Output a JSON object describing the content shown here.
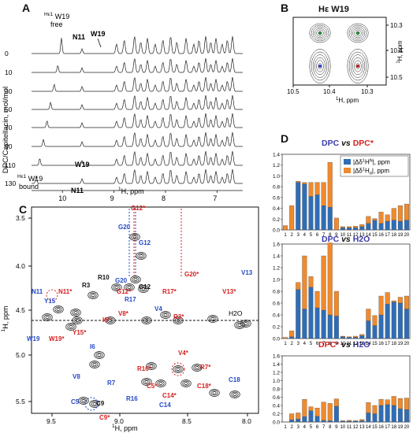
{
  "panels": {
    "A": {
      "label": "A",
      "ylabel": "DPC/Capitellacin, mol/mol",
      "xlabel": "1H, ppm",
      "xlabel_parts": {
        "sup": "1",
        "main": "H, ppm"
      },
      "ratios": [
        "0",
        "10",
        "30",
        "50",
        "70",
        "90",
        "110",
        "130"
      ],
      "x_ticks": [
        "10",
        "9",
        "8",
        "7"
      ],
      "ann_free": {
        "sup": "Hε1",
        "main": " W19",
        "line2": "free"
      },
      "ann_bound": {
        "sup": "Hε1",
        "main": " W19",
        "line2": "bound"
      },
      "ann_n11_top": "N11",
      "ann_w19_top": "W19",
      "ann_w19_bottom": "W19",
      "ann_n11_bottom": "N11"
    },
    "B": {
      "label": "B",
      "title": "Hε W19",
      "x_ticks": [
        "10.5",
        "10.4",
        "10.3"
      ],
      "y_ticks": [
        "10.3",
        "10.4",
        "10.5"
      ],
      "xlabel": "1H, ppm",
      "ylabel": "1H, ppm"
    },
    "C": {
      "label": "C",
      "x_ticks": [
        "9.5",
        "9.0",
        "8.5",
        "8.0"
      ],
      "y_ticks": [
        "3.5",
        "4.0",
        "4.5",
        "5.0",
        "5.5"
      ],
      "xlabel": "1H, ppm",
      "ylabel": "1H, ppm",
      "h2o": "H2O",
      "peaks_blue": [
        "G20",
        "G12",
        "G20",
        "R17",
        "V4",
        "V13",
        "N11",
        "Y15",
        "W19",
        "I6",
        "V8",
        "R7",
        "R16",
        "C14",
        "C18",
        "C5"
      ],
      "peaks_red": [
        "G12*",
        "G20*",
        "G12*",
        "R17*",
        "R3*",
        "V13*",
        "N11*",
        "V8*",
        "I6*",
        "Y15*",
        "W19*",
        "V4*",
        "R7*",
        "R16*",
        "C5*",
        "C14*",
        "C18*",
        "C9*"
      ],
      "peaks_black": [
        "G12",
        "R10",
        "R3",
        "C9"
      ]
    },
    "D": {
      "label": "D",
      "legend": {
        "hn": {
          "pre": "|Δδ",
          "sup": "1",
          "main": "H",
          "sub": "N",
          "post": "|, ppm"
        },
        "ha": {
          "pre": "|Δδ",
          "sup": "1",
          "main": "H",
          "sub": "α",
          "post": "|, ppm"
        }
      },
      "subplots": [
        {
          "title_a": "DPC",
          "title_vs": " vs ",
          "title_b": "DPC*",
          "color_a": "#3b3ba8",
          "color_b": "#d62020"
        },
        {
          "title_a": "DPC",
          "title_vs": " vs ",
          "title_b": "H2O",
          "color_a": "#3b3ba8",
          "color_b": "#3b3ba8"
        },
        {
          "title_a": "DPC*",
          "title_vs": " vs ",
          "title_b": "H2O",
          "color_a": "#d62020",
          "color_b": "#3b3ba8"
        }
      ]
    }
  },
  "colors": {
    "hn": "#2f6db5",
    "ha": "#ef8a2e",
    "blue_label": "#2448c8",
    "red_label": "#d62020"
  },
  "chart_data": [
    {
      "type": "bar",
      "title": "DPC vs DPC*",
      "categories": [
        "1",
        "2",
        "3",
        "4",
        "5",
        "6",
        "7",
        "8",
        "9",
        "10",
        "11",
        "12",
        "13",
        "14",
        "15",
        "16",
        "17",
        "18",
        "19",
        "20"
      ],
      "ylim": [
        0,
        1.4
      ],
      "yticks": [
        "0.0",
        "0.2",
        "0.4",
        "0.6",
        "0.8",
        "1.0",
        "1.2",
        "1.4"
      ],
      "stacked": true,
      "series": [
        {
          "name": "|Δδ1HN|, ppm",
          "values": [
            0.0,
            0.0,
            0.88,
            0.85,
            0.62,
            0.65,
            0.45,
            0.42,
            0.0,
            0.04,
            0.04,
            0.04,
            0.06,
            0.12,
            0.18,
            0.12,
            0.16,
            0.18,
            0.16,
            0.18
          ]
        },
        {
          "name": "|Δδ1Hα|, ppm",
          "values": [
            0.08,
            0.45,
            0.02,
            0.03,
            0.26,
            0.23,
            0.43,
            0.83,
            0.22,
            0.02,
            0.02,
            0.03,
            0.04,
            0.13,
            0.03,
            0.21,
            0.12,
            0.22,
            0.29,
            0.3
          ]
        }
      ]
    },
    {
      "type": "bar",
      "title": "DPC vs H2O",
      "categories": [
        "1",
        "2",
        "3",
        "4",
        "5",
        "6",
        "7",
        "8",
        "9",
        "10",
        "11",
        "12",
        "13",
        "14",
        "15",
        "16",
        "17",
        "18",
        "19",
        "20"
      ],
      "ylim": [
        0,
        1.6
      ],
      "yticks": [
        "0.0",
        "0.2",
        "0.4",
        "0.6",
        "0.8",
        "1.0",
        "1.2",
        "1.4",
        "1.6"
      ],
      "stacked": true,
      "series": [
        {
          "name": "|Δδ1HN|, ppm",
          "values": [
            0.0,
            0.03,
            0.83,
            0.5,
            0.87,
            0.52,
            0.48,
            0.4,
            0.38,
            0.03,
            0.02,
            0.02,
            0.05,
            0.3,
            0.22,
            0.4,
            0.58,
            0.62,
            0.6,
            0.5
          ]
        },
        {
          "name": "|Δδ1Hα|, ppm",
          "values": [
            0.02,
            0.1,
            0.12,
            0.9,
            0.18,
            0.28,
            0.92,
            1.22,
            0.42,
            0.01,
            0.01,
            0.02,
            0.02,
            0.2,
            0.17,
            0.32,
            0.2,
            0.02,
            0.1,
            0.22
          ]
        }
      ]
    },
    {
      "type": "bar",
      "title": "DPC* vs H2O",
      "categories": [
        "1",
        "2",
        "3",
        "4",
        "5",
        "6",
        "7",
        "8",
        "9",
        "10",
        "11",
        "12",
        "13",
        "14",
        "15",
        "16",
        "17",
        "18",
        "19",
        "20"
      ],
      "ylim": [
        0,
        1.6
      ],
      "yticks": [
        "0.0",
        "0.2",
        "0.4",
        "0.6",
        "0.8",
        "1.0",
        "1.2",
        "1.4",
        "1.6"
      ],
      "stacked": true,
      "series": [
        {
          "name": "|Δδ1HN|, ppm",
          "values": [
            0.0,
            0.05,
            0.07,
            0.13,
            0.27,
            0.14,
            0.04,
            0.03,
            0.38,
            0.02,
            0.02,
            0.02,
            0.03,
            0.22,
            0.2,
            0.4,
            0.42,
            0.4,
            0.32,
            0.3
          ]
        },
        {
          "name": "|Δδ1Hα|, ppm",
          "values": [
            0.0,
            0.15,
            0.15,
            0.42,
            0.1,
            0.2,
            0.44,
            0.42,
            0.18,
            0.01,
            0.02,
            0.01,
            0.03,
            0.25,
            0.2,
            0.15,
            0.12,
            0.22,
            0.25,
            0.28
          ]
        }
      ]
    }
  ]
}
